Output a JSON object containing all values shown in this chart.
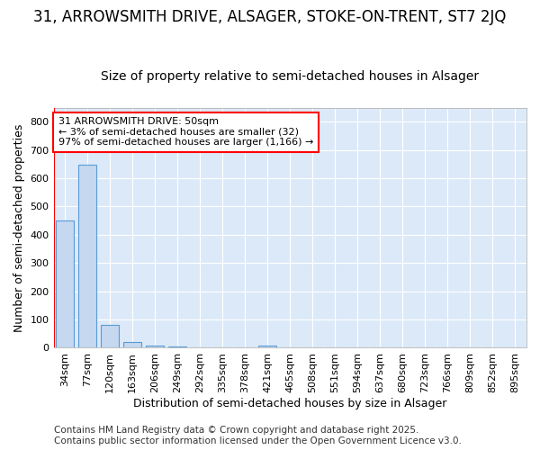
{
  "title1": "31, ARROWSMITH DRIVE, ALSAGER, STOKE-ON-TRENT, ST7 2JQ",
  "title2": "Size of property relative to semi-detached houses in Alsager",
  "xlabel": "Distribution of semi-detached houses by size in Alsager",
  "ylabel": "Number of semi-detached properties",
  "categories": [
    "34sqm",
    "77sqm",
    "120sqm",
    "163sqm",
    "206sqm",
    "249sqm",
    "292sqm",
    "335sqm",
    "378sqm",
    "421sqm",
    "465sqm",
    "508sqm",
    "551sqm",
    "594sqm",
    "637sqm",
    "680sqm",
    "723sqm",
    "766sqm",
    "809sqm",
    "852sqm",
    "895sqm"
  ],
  "values": [
    450,
    648,
    80,
    22,
    9,
    6,
    0,
    0,
    0,
    8,
    0,
    0,
    0,
    0,
    0,
    0,
    0,
    0,
    0,
    0,
    0
  ],
  "bar_color": "#c5d8f0",
  "bar_edge_color": "#5b9bd5",
  "red_line_x": -0.5,
  "annotation_text": "31 ARROWSMITH DRIVE: 50sqm\n← 3% of semi-detached houses are smaller (32)\n97% of semi-detached houses are larger (1,166) →",
  "ylim": [
    0,
    850
  ],
  "yticks": [
    0,
    100,
    200,
    300,
    400,
    500,
    600,
    700,
    800
  ],
  "footer_text": "Contains HM Land Registry data © Crown copyright and database right 2025.\nContains public sector information licensed under the Open Government Licence v3.0.",
  "background_color": "#ffffff",
  "plot_bg_color": "#dce9f8",
  "grid_color": "#ffffff",
  "title1_fontsize": 12,
  "title2_fontsize": 10,
  "axis_label_fontsize": 9,
  "tick_fontsize": 8,
  "footer_fontsize": 7.5
}
